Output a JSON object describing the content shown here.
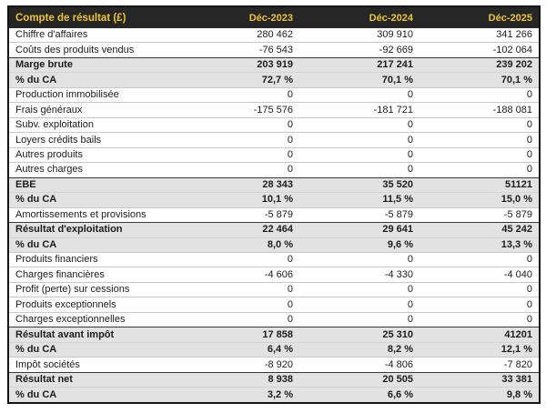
{
  "chart_data": {
    "type": "table",
    "title": "Compte de résultat (£)",
    "columns": [
      "Déc-2023",
      "Déc-2024",
      "Déc-2025"
    ],
    "rows": [
      {
        "label": "Chiffre d'affaires",
        "values": [
          "280 462",
          "309 910",
          "341 266"
        ],
        "style": "normal"
      },
      {
        "label": "Coûts des produits vendus",
        "values": [
          "-76 543",
          "-92 669",
          "-102 064"
        ],
        "style": "normal"
      },
      {
        "label": "Marge brute",
        "values": [
          "203 919",
          "217 241",
          "239 202"
        ],
        "style": "bold-start"
      },
      {
        "label": "% du CA",
        "values": [
          "72,7 %",
          "70,1 %",
          "70,1 %"
        ],
        "style": "bold"
      },
      {
        "label": "Production immobilisée",
        "values": [
          "0",
          "0",
          "0"
        ],
        "style": "normal"
      },
      {
        "label": "Frais généraux",
        "values": [
          "-175 576",
          "-181 721",
          "-188 081"
        ],
        "style": "normal"
      },
      {
        "label": "Subv. exploitation",
        "values": [
          "0",
          "0",
          "0"
        ],
        "style": "normal"
      },
      {
        "label": "Loyers crédits bails",
        "values": [
          "0",
          "0",
          "0"
        ],
        "style": "normal"
      },
      {
        "label": "Autres produits",
        "values": [
          "0",
          "0",
          "0"
        ],
        "style": "normal"
      },
      {
        "label": "Autres charges",
        "values": [
          "0",
          "0",
          "0"
        ],
        "style": "normal"
      },
      {
        "label": "EBE",
        "values": [
          "28 343",
          "35 520",
          "51121"
        ],
        "style": "bold-start"
      },
      {
        "label": "% du CA",
        "values": [
          "10,1 %",
          "11,5 %",
          "15,0 %"
        ],
        "style": "bold"
      },
      {
        "label": "Amortissements et provisions",
        "values": [
          "-5 879",
          "-5 879",
          "-5 879"
        ],
        "style": "normal"
      },
      {
        "label": "Résultat d'exploitation",
        "values": [
          "22 464",
          "29 641",
          "45 242"
        ],
        "style": "bold-start"
      },
      {
        "label": "% du CA",
        "values": [
          "8,0 %",
          "9,6 %",
          "13,3 %"
        ],
        "style": "bold"
      },
      {
        "label": "Produits financiers",
        "values": [
          "0",
          "0",
          "0"
        ],
        "style": "normal"
      },
      {
        "label": "Charges financières",
        "values": [
          "-4 606",
          "-4 330",
          "-4 040"
        ],
        "style": "normal"
      },
      {
        "label": "Profit (perte) sur cessions",
        "values": [
          "0",
          "0",
          "0"
        ],
        "style": "normal"
      },
      {
        "label": "Produits exceptionnels",
        "values": [
          "0",
          "0",
          "0"
        ],
        "style": "normal"
      },
      {
        "label": "Charges exceptionnelles",
        "values": [
          "0",
          "0",
          "0"
        ],
        "style": "normal"
      },
      {
        "label": "Résultat avant impôt",
        "values": [
          "17 858",
          "25 310",
          "41201"
        ],
        "style": "bold-start"
      },
      {
        "label": "% du CA",
        "values": [
          "6,4 %",
          "8,2 %",
          "12,1 %"
        ],
        "style": "bold"
      },
      {
        "label": "Impôt sociétés",
        "values": [
          "-8 920",
          "-4 806",
          "-7 820"
        ],
        "style": "normal"
      },
      {
        "label": "Résultat net",
        "values": [
          "8 938",
          "20 505",
          "33 381"
        ],
        "style": "bold-start"
      },
      {
        "label": "% du CA",
        "values": [
          "3,2 %",
          "6,6 %",
          "9,8 %"
        ],
        "style": "bold"
      }
    ]
  },
  "colors": {
    "header_bg": "#262626",
    "header_text": "#f0c431",
    "highlight_row_bg": "#e2e2e2",
    "border": "#141414"
  }
}
